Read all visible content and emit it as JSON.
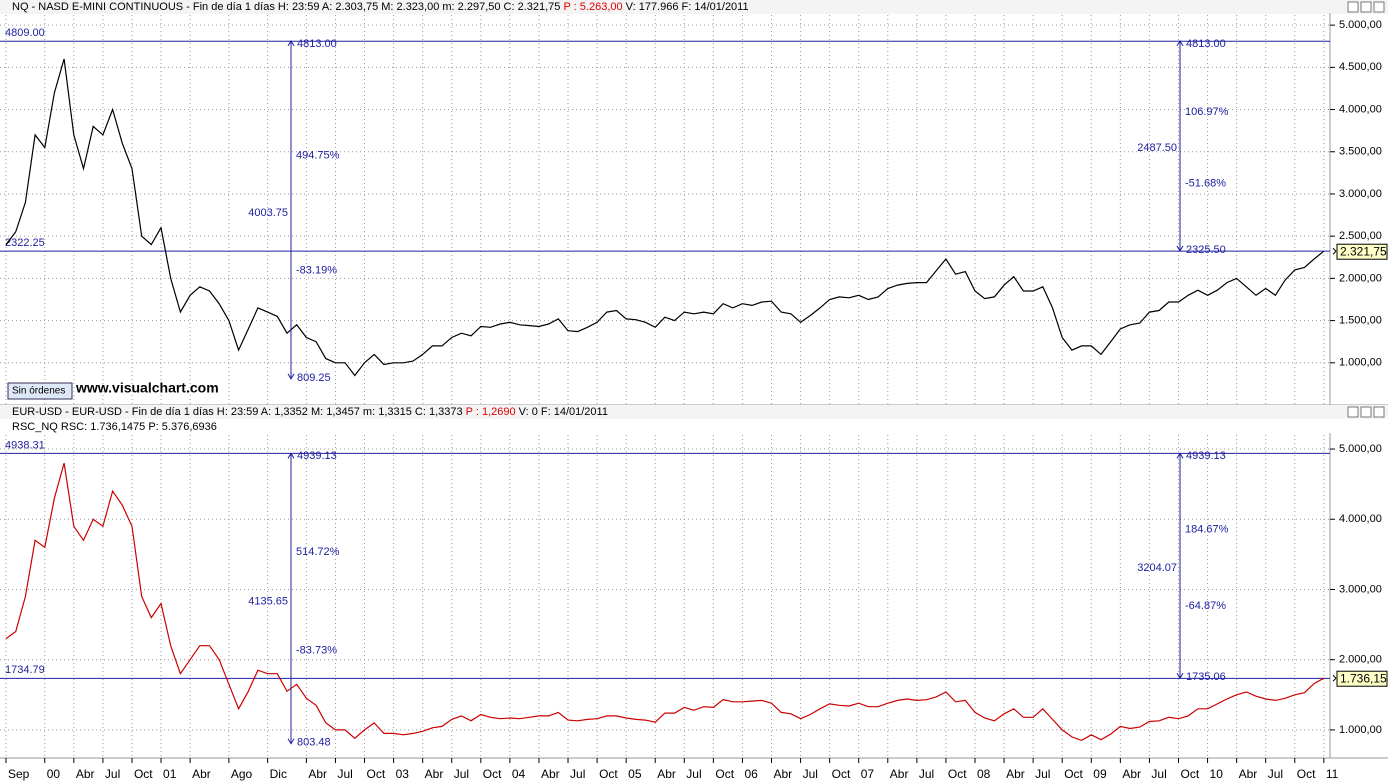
{
  "chart_data": [
    {
      "type": "line",
      "header": [
        "NQ - NASD E-MINI CONTINUOUS - Fin de día 1 días  H: 23:59  A: 2.303,75  M: 2.323,00  m: 2.297,50  C: 2.321,75  ",
        "P : 5.263,00",
        "  V: 177.966  F: 14/01/2011"
      ],
      "categories": [
        "Sep",
        null,
        null,
        null,
        "00",
        null,
        null,
        "Abr",
        null,
        null,
        "Jul",
        null,
        null,
        "Oct",
        null,
        null,
        "01",
        null,
        null,
        "Abr",
        null,
        null,
        null,
        "Ago",
        null,
        null,
        null,
        "Dic",
        null,
        null,
        null,
        "Abr",
        null,
        null,
        "Jul",
        null,
        null,
        "Oct",
        null,
        null,
        "03",
        null,
        null,
        "Abr",
        null,
        null,
        "Jul",
        null,
        null,
        "Oct",
        null,
        null,
        "04",
        null,
        null,
        "Abr",
        null,
        null,
        "Jul",
        null,
        null,
        "Oct",
        null,
        null,
        "05",
        null,
        null,
        "Abr",
        null,
        null,
        "Jul",
        null,
        null,
        "Oct",
        null,
        null,
        "06",
        null,
        null,
        "Abr",
        null,
        null,
        "Jul",
        null,
        null,
        "Oct",
        null,
        null,
        "07",
        null,
        null,
        "Abr",
        null,
        null,
        "Jul",
        null,
        null,
        "Oct",
        null,
        null,
        "08",
        null,
        null,
        "Abr",
        null,
        null,
        "Jul",
        null,
        null,
        "Oct",
        null,
        null,
        "09",
        null,
        null,
        "Abr",
        null,
        null,
        "Jul",
        null,
        null,
        "Oct",
        null,
        null,
        "10",
        null,
        null,
        "Abr",
        null,
        null,
        "Jul",
        null,
        null,
        "Oct",
        null,
        null,
        "11"
      ],
      "series": [
        {
          "name": "NQ",
          "color": "#000000",
          "values": [
            2400,
            2550,
            2900,
            3700,
            3550,
            4200,
            4600,
            3700,
            3300,
            3800,
            3700,
            4000,
            3600,
            3300,
            2500,
            2400,
            2600,
            2000,
            1600,
            1800,
            1900,
            1850,
            1700,
            1500,
            1150,
            1400,
            1650,
            1600,
            1550,
            1350,
            1450,
            1300,
            1250,
            1050,
            1000,
            1000,
            850,
            1000,
            1100,
            980,
            1000,
            1000,
            1020,
            1100,
            1200,
            1200,
            1300,
            1350,
            1320,
            1430,
            1420,
            1460,
            1480,
            1450,
            1440,
            1430,
            1460,
            1520,
            1380,
            1370,
            1420,
            1480,
            1600,
            1620,
            1520,
            1510,
            1480,
            1420,
            1540,
            1500,
            1600,
            1580,
            1600,
            1580,
            1700,
            1650,
            1700,
            1680,
            1720,
            1730,
            1600,
            1580,
            1480,
            1560,
            1650,
            1750,
            1780,
            1770,
            1800,
            1750,
            1780,
            1880,
            1920,
            1940,
            1950,
            1950,
            2090,
            2230,
            2050,
            2080,
            1850,
            1760,
            1780,
            1920,
            2020,
            1850,
            1850,
            1900,
            1650,
            1300,
            1150,
            1200,
            1200,
            1100,
            1250,
            1400,
            1450,
            1470,
            1600,
            1620,
            1720,
            1720,
            1800,
            1860,
            1800,
            1860,
            1950,
            2000,
            1900,
            1800,
            1880,
            1800,
            1980,
            2100,
            2130,
            2230,
            2321.75
          ]
        }
      ],
      "ylim": [
        500,
        5120
      ],
      "yticks": [
        {
          "value": 1000,
          "label": "1.000,00"
        },
        {
          "value": 1500,
          "label": "1.500,00"
        },
        {
          "value": 2000,
          "label": "2.000,00"
        },
        {
          "value": 2500,
          "label": "2.500,00"
        },
        {
          "value": 3000,
          "label": "3.000,00"
        },
        {
          "value": 3500,
          "label": "3.500,00"
        },
        {
          "value": 4000,
          "label": "4.000,00"
        },
        {
          "value": 4500,
          "label": "4.500,00"
        },
        {
          "value": 5000,
          "label": "5.000,00"
        }
      ],
      "grid": true,
      "last_price": {
        "value": 2321.75,
        "label": "2.321,75"
      },
      "hlines": [
        {
          "value": 4809,
          "label": "4809.00"
        },
        {
          "value": 2322.25,
          "label": "2322.25"
        }
      ],
      "measures": [
        {
          "top": {
            "value": 4813,
            "label": "4813.00"
          },
          "bottom": {
            "value": 809.25,
            "label": "809.25"
          },
          "up_pct": "494.75%",
          "range": "4003.75",
          "down_pct": "-83.19%"
        },
        {
          "top": {
            "value": 4813,
            "label": "4813.00"
          },
          "bottom": {
            "value": 2325.5,
            "label": "2325.50"
          },
          "up_pct": "106.97%",
          "range": "2487.50",
          "down_pct": "-51.68%"
        }
      ],
      "button": "Sin órdenes",
      "watermark": "www.visualchart.com"
    },
    {
      "type": "line",
      "header": [
        "EUR-USD - EUR-USD - Fin de día 1 días  H: 23:59  A: 1,3352  M: 1,3457  m: 1,3315  C: 1,3373  ",
        "P : 1,2690",
        "  V: 0  F: 14/01/2011"
      ],
      "subheader": "RSC_NQ  RSC: 1.736,1475  P: 5.376,6936",
      "categories": [
        "Sep",
        null,
        null,
        null,
        "00",
        null,
        null,
        "Abr",
        null,
        null,
        "Jul",
        null,
        null,
        "Oct",
        null,
        null,
        "01",
        null,
        null,
        "Abr",
        null,
        null,
        null,
        "Ago",
        null,
        null,
        null,
        "Dic",
        null,
        null,
        null,
        "Abr",
        null,
        null,
        "Jul",
        null,
        null,
        "Oct",
        null,
        null,
        "03",
        null,
        null,
        "Abr",
        null,
        null,
        "Jul",
        null,
        null,
        "Oct",
        null,
        null,
        "04",
        null,
        null,
        "Abr",
        null,
        null,
        "Jul",
        null,
        null,
        "Oct",
        null,
        null,
        "05",
        null,
        null,
        "Abr",
        null,
        null,
        "Jul",
        null,
        null,
        "Oct",
        null,
        null,
        "06",
        null,
        null,
        "Abr",
        null,
        null,
        "Jul",
        null,
        null,
        "Oct",
        null,
        null,
        "07",
        null,
        null,
        "Abr",
        null,
        null,
        "Jul",
        null,
        null,
        "Oct",
        null,
        null,
        "08",
        null,
        null,
        "Abr",
        null,
        null,
        "Jul",
        null,
        null,
        "Oct",
        null,
        null,
        "09",
        null,
        null,
        "Abr",
        null,
        null,
        "Jul",
        null,
        null,
        "Oct",
        null,
        null,
        "10",
        null,
        null,
        "Abr",
        null,
        null,
        "Jul",
        null,
        null,
        "Oct",
        null,
        null,
        "11"
      ],
      "series": [
        {
          "name": "RSC_NQ",
          "color": "#cc0000",
          "values": [
            2300,
            2400,
            2900,
            3700,
            3600,
            4300,
            4800,
            3900,
            3700,
            4000,
            3900,
            4400,
            4200,
            3900,
            2900,
            2600,
            2800,
            2200,
            1800,
            2000,
            2200,
            2200,
            2000,
            1650,
            1300,
            1550,
            1850,
            1800,
            1800,
            1550,
            1650,
            1450,
            1350,
            1100,
            1000,
            1000,
            880,
            1000,
            1100,
            950,
            950,
            930,
            950,
            980,
            1030,
            1050,
            1150,
            1200,
            1130,
            1220,
            1180,
            1160,
            1170,
            1160,
            1180,
            1200,
            1200,
            1250,
            1140,
            1130,
            1150,
            1160,
            1200,
            1200,
            1170,
            1150,
            1140,
            1110,
            1240,
            1240,
            1320,
            1280,
            1330,
            1320,
            1430,
            1400,
            1400,
            1410,
            1420,
            1380,
            1250,
            1230,
            1160,
            1220,
            1300,
            1370,
            1350,
            1340,
            1380,
            1330,
            1330,
            1380,
            1420,
            1440,
            1420,
            1430,
            1470,
            1540,
            1400,
            1420,
            1250,
            1170,
            1130,
            1230,
            1300,
            1180,
            1180,
            1300,
            1150,
            1000,
            900,
            850,
            930,
            860,
            940,
            1050,
            1020,
            1040,
            1120,
            1130,
            1180,
            1160,
            1200,
            1300,
            1300,
            1370,
            1440,
            1500,
            1540,
            1480,
            1440,
            1420,
            1450,
            1500,
            1530,
            1660,
            1736.15
          ]
        }
      ],
      "ylim": [
        600,
        5200
      ],
      "yticks": [
        {
          "value": 1000,
          "label": "1.000,00"
        },
        {
          "value": 2000,
          "label": "2.000,00"
        },
        {
          "value": 3000,
          "label": "3.000,00"
        },
        {
          "value": 4000,
          "label": "4.000,00"
        },
        {
          "value": 5000,
          "label": "5.000,00"
        }
      ],
      "grid": true,
      "last_price": {
        "value": 1736.15,
        "label": "1.736,15"
      },
      "hlines": [
        {
          "value": 4938.31,
          "label": "4938.31"
        },
        {
          "value": 1734.79,
          "label": "1734.79"
        }
      ],
      "measures": [
        {
          "top": {
            "value": 4939.13,
            "label": "4939.13"
          },
          "bottom": {
            "value": 803.48,
            "label": "803.48"
          },
          "up_pct": "514.72%",
          "range": "4135.65",
          "down_pct": "-83.73%"
        },
        {
          "top": {
            "value": 4939.13,
            "label": "4939.13"
          },
          "bottom": {
            "value": 1735.06,
            "label": "1735.06"
          },
          "up_pct": "184.67%",
          "range": "3204.07",
          "down_pct": "-64.87%"
        }
      ]
    }
  ]
}
